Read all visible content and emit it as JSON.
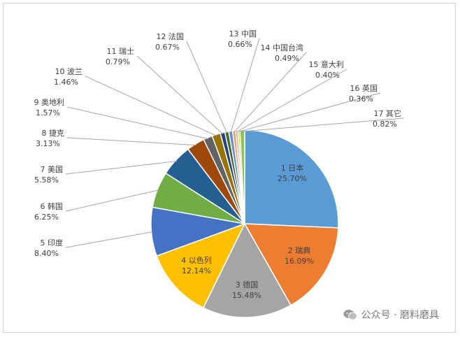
{
  "chart_data": {
    "type": "pie",
    "slices": [
      {
        "label": "1 日本",
        "value": 25.7,
        "pct": "25.70%",
        "color": "#5b9bd5"
      },
      {
        "label": "2 瑞典",
        "value": 16.09,
        "pct": "16.09%",
        "color": "#ed7d31"
      },
      {
        "label": "3 德国",
        "value": 15.48,
        "pct": "15.48%",
        "color": "#a5a5a5"
      },
      {
        "label": "4 以色列",
        "value": 12.14,
        "pct": "12.14%",
        "color": "#ffc000"
      },
      {
        "label": "5 印度",
        "value": 8.4,
        "pct": "8.40%",
        "color": "#4472c4"
      },
      {
        "label": "6 韩国",
        "value": 6.25,
        "pct": "6.25%",
        "color": "#70ad47"
      },
      {
        "label": "7 美国",
        "value": 5.58,
        "pct": "5.58%",
        "color": "#255e91"
      },
      {
        "label": "8 捷克",
        "value": 3.13,
        "pct": "3.13%",
        "color": "#9e480e"
      },
      {
        "label": "9 奥地利",
        "value": 1.57,
        "pct": "1.57%",
        "color": "#636363"
      },
      {
        "label": "10 波兰",
        "value": 1.46,
        "pct": "1.46%",
        "color": "#997300"
      },
      {
        "label": "11 瑞士",
        "value": 0.79,
        "pct": "0.79%",
        "color": "#264478"
      },
      {
        "label": "12 法国",
        "value": 0.67,
        "pct": "0.67%",
        "color": "#43682b"
      },
      {
        "label": "13 中国",
        "value": 0.66,
        "pct": "0.66%",
        "color": "#698ed0"
      },
      {
        "label": "14 中国台湾",
        "value": 0.49,
        "pct": "0.49%",
        "color": "#f1975a"
      },
      {
        "label": "15 意大利",
        "value": 0.4,
        "pct": "0.40%",
        "color": "#b7b7b7"
      },
      {
        "label": "16 英国",
        "value": 0.36,
        "pct": "0.36%",
        "color": "#ffcd33"
      },
      {
        "label": "17 其它",
        "value": 0.82,
        "pct": "0.82%",
        "color": "#8cc168"
      }
    ]
  },
  "watermark": {
    "text": "公众号 · 磨料磨具",
    "icon": "wechat-icon"
  }
}
